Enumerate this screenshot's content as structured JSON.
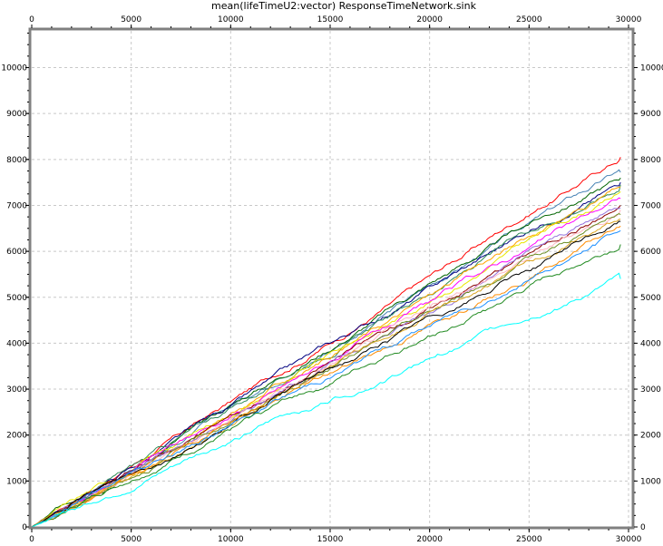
{
  "chart_data": {
    "type": "line",
    "title": "mean(lifeTimeU2:vector) ResponseTimeNetwork.sink",
    "xlabel": "",
    "ylabel": "",
    "xlim": [
      0,
      30000
    ],
    "ylim": [
      0,
      10800
    ],
    "x_ticks": [
      0,
      5000,
      10000,
      15000,
      20000,
      25000,
      30000
    ],
    "y_ticks": [
      0,
      1000,
      2000,
      3000,
      4000,
      5000,
      6000,
      7000,
      8000,
      9000,
      10000
    ],
    "x_tick_labels": [
      "0",
      "5000",
      "10000",
      "15000",
      "20000",
      "25000",
      "30000"
    ],
    "y_tick_labels": [
      "0",
      "1000",
      "2000",
      "3000",
      "4000",
      "5000",
      "6000",
      "7000",
      "8000",
      "9000",
      "10000"
    ],
    "grid": true,
    "legend": "none",
    "series": [
      {
        "color": "#ff0000",
        "x": [
          0,
          5000,
          10000,
          15000,
          20000,
          25000,
          29600
        ],
        "y": [
          0,
          1380,
          2700,
          4050,
          5400,
          6850,
          8050
        ]
      },
      {
        "color": "#4682b4",
        "x": [
          0,
          5000,
          10000,
          15000,
          20000,
          25000,
          29600
        ],
        "y": [
          0,
          1300,
          2620,
          3950,
          5250,
          6600,
          7720
        ]
      },
      {
        "color": "#006400",
        "x": [
          0,
          5000,
          10000,
          15000,
          20000,
          25000,
          29600
        ],
        "y": [
          0,
          1330,
          2650,
          3950,
          5300,
          6570,
          7600
        ]
      },
      {
        "color": "#000080",
        "x": [
          0,
          5000,
          10000,
          15000,
          20000,
          25000,
          29600
        ],
        "y": [
          0,
          1290,
          2580,
          3880,
          5150,
          6450,
          7500
        ]
      },
      {
        "color": "#2e8b57",
        "x": [
          0,
          5000,
          10000,
          15000,
          20000,
          25000,
          29600
        ],
        "y": [
          0,
          1270,
          2550,
          3850,
          5100,
          6420,
          7450
        ]
      },
      {
        "color": "#ffa500",
        "x": [
          0,
          5000,
          10000,
          15000,
          20000,
          25000,
          29600
        ],
        "y": [
          0,
          1250,
          2500,
          3750,
          5000,
          6300,
          7400
        ]
      },
      {
        "color": "#e8e800",
        "x": [
          0,
          5000,
          10000,
          15000,
          20000,
          25000,
          29600
        ],
        "y": [
          0,
          1240,
          2480,
          3720,
          4950,
          6250,
          7300
        ]
      },
      {
        "color": "#ff00ff",
        "x": [
          0,
          5000,
          10000,
          15000,
          20000,
          25000,
          29600
        ],
        "y": [
          0,
          1220,
          2420,
          3620,
          4800,
          6050,
          7150
        ]
      },
      {
        "color": "#8b0000",
        "x": [
          0,
          5000,
          10000,
          15000,
          20000,
          25000,
          29600
        ],
        "y": [
          0,
          1200,
          2400,
          3600,
          4750,
          6000,
          7000
        ]
      },
      {
        "color": "#9370db",
        "x": [
          0,
          5000,
          10000,
          15000,
          20000,
          25000,
          29600
        ],
        "y": [
          0,
          1190,
          2380,
          3570,
          4720,
          5950,
          6950
        ]
      },
      {
        "color": "#ffb6c1",
        "x": [
          0,
          5000,
          10000,
          15000,
          20000,
          25000,
          29600
        ],
        "y": [
          0,
          1180,
          2360,
          3540,
          4680,
          5880,
          6900
        ]
      },
      {
        "color": "#6b8e23",
        "x": [
          0,
          5000,
          10000,
          15000,
          20000,
          25000,
          29600
        ],
        "y": [
          0,
          1160,
          2320,
          3480,
          4620,
          5780,
          6800
        ]
      },
      {
        "color": "#daa520",
        "x": [
          0,
          5000,
          10000,
          15000,
          20000,
          25000,
          29600
        ],
        "y": [
          0,
          1150,
          2300,
          3450,
          4580,
          5700,
          6700
        ]
      },
      {
        "color": "#000000",
        "x": [
          0,
          5000,
          10000,
          15000,
          20000,
          25000,
          29600
        ],
        "y": [
          0,
          1130,
          2270,
          3400,
          4500,
          5600,
          6650
        ]
      },
      {
        "color": "#ff8c00",
        "x": [
          0,
          5000,
          10000,
          15000,
          20000,
          25000,
          29600
        ],
        "y": [
          0,
          1110,
          2230,
          3330,
          4420,
          5500,
          6550
        ]
      },
      {
        "color": "#1e90ff",
        "x": [
          0,
          5000,
          10000,
          15000,
          20000,
          25000,
          29600
        ],
        "y": [
          0,
          1100,
          2200,
          3300,
          4380,
          5450,
          6450
        ]
      },
      {
        "color": "#228b22",
        "x": [
          0,
          5000,
          10000,
          15000,
          20000,
          25000,
          29600
        ],
        "y": [
          0,
          1050,
          2100,
          3150,
          4180,
          5200,
          6150
        ]
      },
      {
        "color": "#00ffff",
        "x": [
          0,
          5000,
          10000,
          15000,
          20000,
          25000,
          29600
        ],
        "y": [
          0,
          950,
          1880,
          2800,
          3700,
          4600,
          5400
        ]
      }
    ]
  }
}
